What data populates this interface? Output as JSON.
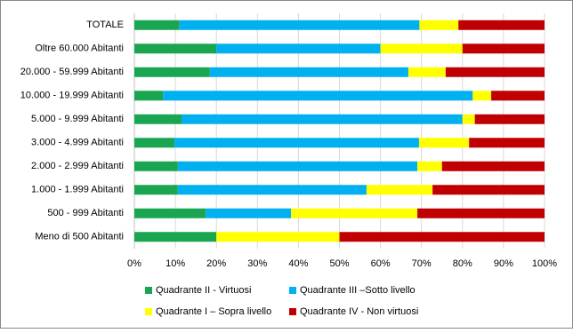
{
  "chart_data": {
    "type": "stacked-barh",
    "categories": [
      "TOTALE",
      "Oltre 60.000 Abitanti",
      "20.000 - 59.999 Abitanti",
      "10.000 - 19.999 Abitanti",
      "5.000 - 9.999 Abitanti",
      "3.000 - 4.999 Abitanti",
      "2.000 - 2.999 Abitanti",
      "1.000 - 1.999 Abitanti",
      "500 - 999 Abitanti",
      "Meno di 500 Abitanti"
    ],
    "series": [
      {
        "name": "Quadrante II - Virtuosi",
        "color": "#1aa650",
        "values": [
          11,
          20,
          18.4,
          7,
          11.5,
          9.8,
          10.6,
          10.6,
          17.4,
          20
        ]
      },
      {
        "name": "Quadrante III –Sotto livello",
        "color": "#00b0f0",
        "values": [
          58.5,
          40,
          48.4,
          75.5,
          68.5,
          59.6,
          58.4,
          46,
          20.8,
          0
        ]
      },
      {
        "name": "Quadrante I – Sopra livello",
        "color": "#ffff00",
        "values": [
          9.5,
          20,
          9.1,
          4.5,
          3,
          12.2,
          6,
          16.1,
          30.8,
          30
        ]
      },
      {
        "name": "Quadrante IV - Non virtuosi",
        "color": "#c00000",
        "values": [
          21,
          20,
          24.1,
          13,
          17,
          18.4,
          25,
          27.3,
          31,
          50
        ]
      }
    ],
    "xlim": [
      0,
      100
    ],
    "xticks": [
      {
        "value": 0,
        "label": "0%"
      },
      {
        "value": 10,
        "label": "10%"
      },
      {
        "value": 20,
        "label": "20%"
      },
      {
        "value": 30,
        "label": "30%"
      },
      {
        "value": 40,
        "label": "40%"
      },
      {
        "value": 50,
        "label": "50%"
      },
      {
        "value": 60,
        "label": "60%"
      },
      {
        "value": 70,
        "label": "70%"
      },
      {
        "value": 80,
        "label": "80%"
      },
      {
        "value": 90,
        "label": "90%"
      },
      {
        "value": 100,
        "label": "100%"
      }
    ],
    "grid": true,
    "legend": "bottom"
  }
}
